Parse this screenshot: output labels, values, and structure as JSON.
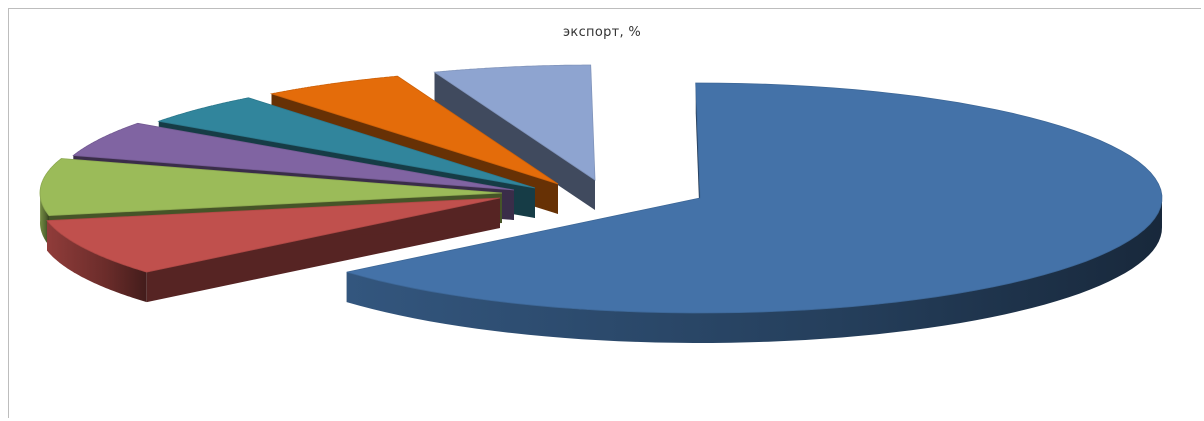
{
  "chart_data": {
    "type": "pie",
    "title": "экспорт, %",
    "three_d": true,
    "exploded": true,
    "legend": "none",
    "data_labels": "none",
    "slices": [
      {
        "value": 64.0,
        "color": "#4472A8"
      },
      {
        "value": 8.0,
        "color": "#C0504D"
      },
      {
        "value": 8.0,
        "color": "#9BBB59"
      },
      {
        "value": 5.0,
        "color": "#8064A2"
      },
      {
        "value": 4.5,
        "color": "#31859C"
      },
      {
        "value": 5.0,
        "color": "#E46C0A"
      },
      {
        "value": 5.5,
        "color": "#8EA4D0"
      }
    ]
  }
}
